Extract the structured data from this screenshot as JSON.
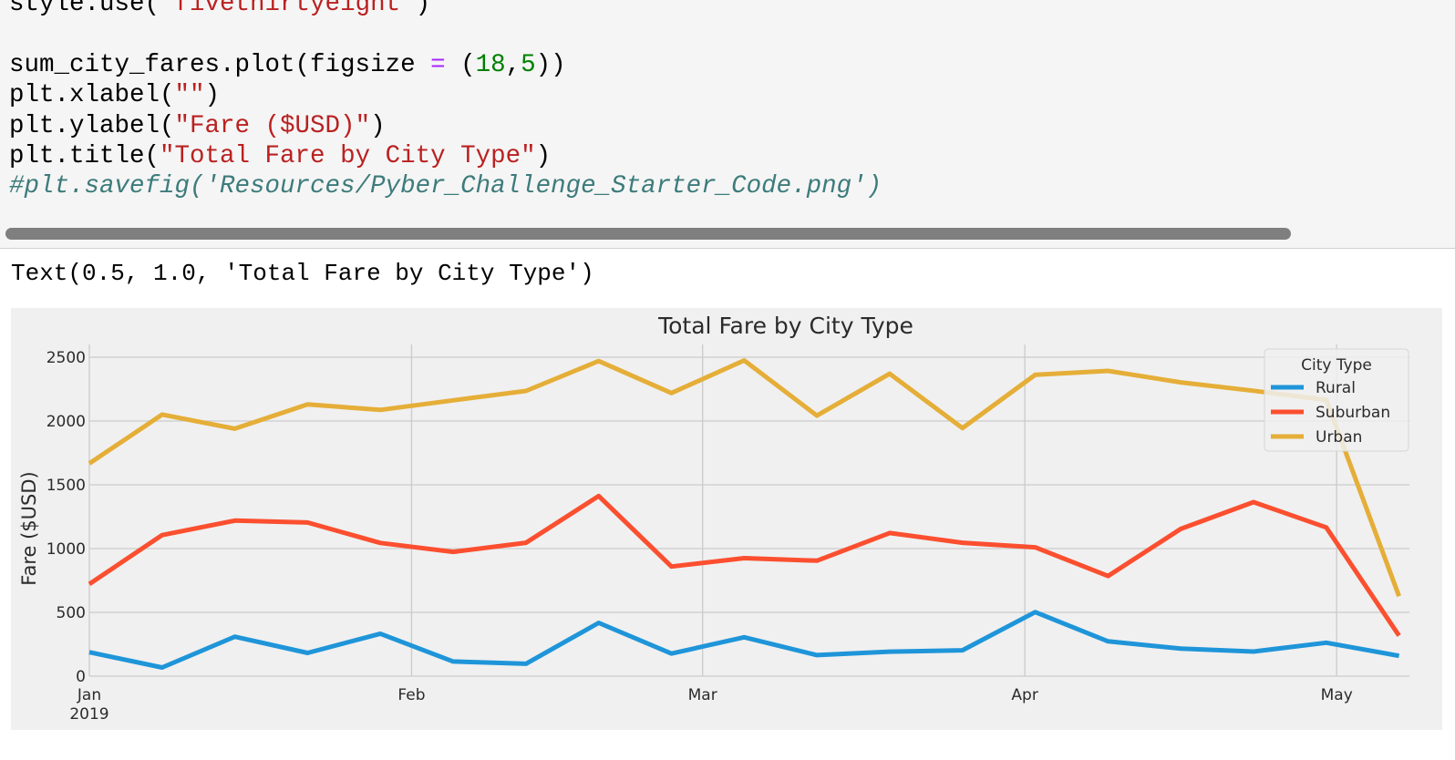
{
  "code_cell": {
    "lines": [
      [
        {
          "t": "style.use(",
          "c": ""
        },
        {
          "t": "'fivethirtyeight'",
          "c": "str"
        },
        {
          "t": ")",
          "c": ""
        }
      ],
      [],
      [
        {
          "t": "sum_city_fares.plot(figsize ",
          "c": ""
        },
        {
          "t": "=",
          "c": "op"
        },
        {
          "t": " (",
          "c": ""
        },
        {
          "t": "18",
          "c": "num"
        },
        {
          "t": ",",
          "c": ""
        },
        {
          "t": "5",
          "c": "num"
        },
        {
          "t": "))",
          "c": ""
        }
      ],
      [
        {
          "t": "plt.xlabel(",
          "c": ""
        },
        {
          "t": "\"\"",
          "c": "str"
        },
        {
          "t": ")",
          "c": ""
        }
      ],
      [
        {
          "t": "plt.ylabel(",
          "c": ""
        },
        {
          "t": "\"Fare ($USD)\"",
          "c": "str"
        },
        {
          "t": ")",
          "c": ""
        }
      ],
      [
        {
          "t": "plt.title(",
          "c": ""
        },
        {
          "t": "\"Total Fare by City Type\"",
          "c": "str"
        },
        {
          "t": ")",
          "c": ""
        }
      ],
      [
        {
          "t": "#plt.savefig('Resources/Pyber_Challenge_Starter_Code.png')",
          "c": "com"
        }
      ]
    ]
  },
  "output": {
    "text": "Text(0.5, 1.0, 'Total Fare by City Type')"
  },
  "chart_data": {
    "type": "line",
    "title": "Total Fare by City Type",
    "xlabel": "",
    "ylabel": "Fare ($USD)",
    "ylim": [
      0,
      2600
    ],
    "yticks": [
      0,
      500,
      1000,
      1500,
      2000,
      2500
    ],
    "xlim": [
      "2019-01-06",
      "2019-05-13"
    ],
    "x": [
      "2019-01-06",
      "2019-01-13",
      "2019-01-20",
      "2019-01-27",
      "2019-02-03",
      "2019-02-10",
      "2019-02-17",
      "2019-02-24",
      "2019-03-03",
      "2019-03-10",
      "2019-03-17",
      "2019-03-24",
      "2019-03-31",
      "2019-04-07",
      "2019-04-14",
      "2019-04-21",
      "2019-04-28",
      "2019-05-05",
      "2019-05-12"
    ],
    "x_major_ticks": [
      {
        "date": "2019-01-06",
        "label": "Jan",
        "sublabel": "2019"
      },
      {
        "date": "2019-02-06",
        "label": "Feb",
        "sublabel": ""
      },
      {
        "date": "2019-03-06",
        "label": "Mar",
        "sublabel": ""
      },
      {
        "date": "2019-04-06",
        "label": "Apr",
        "sublabel": ""
      },
      {
        "date": "2019-05-06",
        "label": "May",
        "sublabel": ""
      }
    ],
    "grid": true,
    "legend": {
      "title": "City Type",
      "placement": "top-right"
    },
    "series": [
      {
        "name": "Rural",
        "color": "#1f95d9",
        "values": [
          188,
          68,
          309,
          182,
          333,
          115,
          97,
          418,
          177,
          305,
          165,
          192,
          203,
          502,
          273,
          216,
          193,
          262,
          159
        ]
      },
      {
        "name": "Suburban",
        "color": "#fb4f2f",
        "values": [
          722,
          1106,
          1219,
          1204,
          1044,
          974,
          1046,
          1412,
          859,
          925,
          905,
          1122,
          1046,
          1010,
          785,
          1154,
          1364,
          1166,
          318
        ]
      },
      {
        "name": "Urban",
        "color": "#e5ae38",
        "values": [
          1667,
          2051,
          1940,
          2130,
          2087,
          2162,
          2236,
          2470,
          2219,
          2475,
          2042,
          2371,
          1944,
          2362,
          2393,
          2303,
          2237,
          2165,
          627
        ]
      }
    ],
    "colors": {
      "background": "#f0f0f0",
      "grid": "#cbcbcb",
      "text": "#2b2b2b"
    }
  }
}
